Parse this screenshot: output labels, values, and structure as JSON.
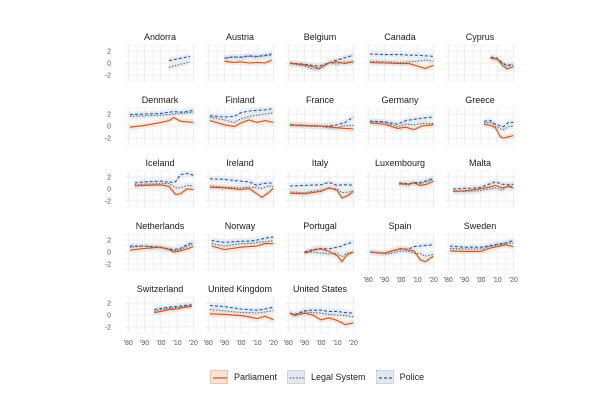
{
  "chart_data": {
    "type": "line",
    "title": "",
    "xlabel": "",
    "ylabel": "",
    "xlim": [
      1978,
      2021
    ],
    "ylim": [
      -3,
      3
    ],
    "x_ticks": [
      1980,
      1990,
      2000,
      2010,
      2020
    ],
    "x_tick_labels": [
      "'80",
      "'90",
      "'00",
      "'10",
      "'20"
    ],
    "y_ticks": [
      -2,
      0,
      2
    ],
    "y_tick_labels": [
      "-2",
      "0",
      "2"
    ],
    "grid": true,
    "legend_position": "bottom",
    "legend": [
      {
        "name": "Parliament",
        "color": "#c8541c",
        "style": "solid",
        "fill": "#f3d6c4"
      },
      {
        "name": "Legal System",
        "color": "#4a6f8f",
        "style": "dotted",
        "fill": "#dbe4ea"
      },
      {
        "name": "Police",
        "color": "#2f5597",
        "style": "dashed",
        "fill": "#d7e1ef"
      }
    ],
    "panels": [
      {
        "country": "Andorra",
        "x": [
          2005,
          2018
        ],
        "parliament": null,
        "legal": [
          -0.7,
          0.2
        ],
        "police": [
          0.4,
          1.1
        ]
      },
      {
        "country": "Austria",
        "x": [
          1990,
          1995,
          2000,
          2005,
          2010,
          2015,
          2019
        ],
        "parliament": [
          0.3,
          0.1,
          0.2,
          0.0,
          0.1,
          0.0,
          0.5
        ],
        "legal": [
          0.8,
          1.0,
          0.9,
          1.1,
          1.0,
          1.2,
          1.3
        ],
        "police": [
          0.8,
          1.0,
          1.0,
          1.2,
          1.1,
          1.3,
          1.5
        ]
      },
      {
        "country": "Belgium",
        "x": [
          1981,
          1990,
          1995,
          1999,
          2005,
          2010,
          2015,
          2020
        ],
        "parliament": [
          0.0,
          -0.3,
          -0.6,
          -0.9,
          0.0,
          0.2,
          -0.1,
          0.3
        ],
        "legal": [
          -0.1,
          -0.5,
          -1.0,
          -1.0,
          0.1,
          -0.2,
          0.2,
          0.0
        ],
        "police": [
          0.0,
          -0.2,
          -0.4,
          -0.5,
          0.0,
          0.5,
          0.9,
          1.3
        ]
      },
      {
        "country": "Canada",
        "x": [
          1981,
          1990,
          2000,
          2005,
          2010,
          2015,
          2020
        ],
        "parliament": [
          0.1,
          0.0,
          -0.1,
          -0.1,
          -0.5,
          -0.9,
          -0.4
        ],
        "legal": [
          0.3,
          0.2,
          0.1,
          0.2,
          0.3,
          0.5,
          0.3
        ],
        "police": [
          1.5,
          1.4,
          1.4,
          1.3,
          1.3,
          1.2,
          1.1
        ]
      },
      {
        "country": "Cyprus",
        "x": [
          2006,
          2010,
          2013,
          2016,
          2020
        ],
        "parliament": [
          0.8,
          0.7,
          -0.3,
          -1.0,
          -0.6
        ],
        "legal": [
          0.8,
          0.6,
          0.0,
          -0.5,
          -0.4
        ],
        "police": [
          1.0,
          0.8,
          0.1,
          -0.4,
          -0.2
        ]
      },
      {
        "country": "Denmark",
        "x": [
          1981,
          1990,
          2000,
          2005,
          2008,
          2012,
          2016,
          2020
        ],
        "parliament": [
          -0.2,
          0.1,
          0.6,
          0.9,
          1.4,
          0.8,
          0.7,
          0.6
        ],
        "legal": [
          1.6,
          1.7,
          1.8,
          1.9,
          2.0,
          2.1,
          2.2,
          2.3
        ],
        "police": [
          1.9,
          2.0,
          2.1,
          2.3,
          2.4,
          2.3,
          2.4,
          2.6
        ]
      },
      {
        "country": "Finland",
        "x": [
          1981,
          1990,
          1996,
          2000,
          2005,
          2010,
          2015,
          2020
        ],
        "parliament": [
          0.9,
          0.2,
          -0.1,
          0.5,
          1.0,
          0.6,
          0.9,
          0.6
        ],
        "legal": [
          1.5,
          1.0,
          0.6,
          1.2,
          1.6,
          1.8,
          2.0,
          2.2
        ],
        "police": [
          1.7,
          1.5,
          1.6,
          2.2,
          2.5,
          2.6,
          2.7,
          2.9
        ]
      },
      {
        "country": "France",
        "x": [
          1981,
          1990,
          2000,
          2005,
          2010,
          2015,
          2020
        ],
        "parliament": [
          0.2,
          0.1,
          0.0,
          -0.1,
          -0.3,
          -0.4,
          -0.5
        ],
        "legal": [
          0.1,
          0.0,
          -0.1,
          -0.3,
          -0.3,
          0.1,
          0.1
        ],
        "police": [
          0.2,
          0.1,
          0.0,
          0.0,
          0.2,
          0.6,
          1.5
        ]
      },
      {
        "country": "Germany",
        "x": [
          1981,
          1990,
          1998,
          2003,
          2008,
          2013,
          2020
        ],
        "parliament": [
          0.5,
          0.3,
          -0.4,
          -0.2,
          -0.6,
          0.0,
          0.2
        ],
        "legal": [
          0.7,
          0.6,
          -0.1,
          0.3,
          0.2,
          0.4,
          0.4
        ],
        "police": [
          0.8,
          0.7,
          0.3,
          0.9,
          1.1,
          1.3,
          1.5
        ]
      },
      {
        "country": "Greece",
        "x": [
          2002,
          2006,
          2009,
          2012,
          2014,
          2017,
          2020
        ],
        "parliament": [
          0.3,
          0.1,
          -0.3,
          -1.8,
          -2.0,
          -1.8,
          -1.6
        ],
        "legal": [
          0.5,
          0.6,
          0.0,
          -0.5,
          -0.6,
          -0.1,
          0.0
        ],
        "police": [
          0.8,
          0.9,
          0.3,
          0.0,
          -0.1,
          0.6,
          0.6
        ]
      },
      {
        "country": "Iceland",
        "x": [
          1984,
          1990,
          2000,
          2005,
          2009,
          2012,
          2016,
          2020
        ],
        "parliament": [
          0.5,
          0.6,
          0.7,
          0.4,
          -0.9,
          -0.8,
          0.0,
          -0.1
        ],
        "legal": [
          0.7,
          0.8,
          0.9,
          0.9,
          0.2,
          0.2,
          0.6,
          0.5
        ],
        "police": [
          1.0,
          1.2,
          1.3,
          1.1,
          1.2,
          2.4,
          2.6,
          2.3
        ]
      },
      {
        "country": "Ireland",
        "x": [
          1981,
          1990,
          2000,
          2005,
          2010,
          2013,
          2017,
          2020
        ],
        "parliament": [
          0.3,
          0.2,
          -0.1,
          0.1,
          -0.8,
          -1.4,
          -0.6,
          0.1
        ],
        "legal": [
          0.5,
          0.3,
          0.2,
          0.3,
          0.2,
          0.1,
          0.5,
          0.4
        ],
        "police": [
          1.7,
          1.6,
          1.3,
          1.2,
          0.6,
          0.9,
          1.0,
          1.0
        ]
      },
      {
        "country": "Italy",
        "x": [
          1981,
          1990,
          2000,
          2005,
          2010,
          2013,
          2017,
          2020
        ],
        "parliament": [
          -0.7,
          -0.8,
          -0.4,
          0.2,
          -0.2,
          -1.5,
          -1.0,
          -0.4
        ],
        "legal": [
          -0.5,
          -0.6,
          -0.2,
          0.1,
          0.0,
          -0.6,
          -0.5,
          -0.3
        ],
        "police": [
          0.5,
          0.6,
          0.7,
          1.1,
          0.6,
          0.7,
          0.7,
          0.6
        ]
      },
      {
        "country": "Luxembourg",
        "x": [
          1999,
          2005,
          2008,
          2012,
          2016,
          2020
        ],
        "parliament": [
          0.9,
          0.8,
          1.0,
          0.6,
          0.8,
          1.3
        ],
        "legal": [
          0.8,
          0.7,
          1.1,
          0.9,
          1.2,
          1.6
        ],
        "police": [
          1.0,
          0.9,
          1.0,
          1.1,
          1.4,
          1.8
        ]
      },
      {
        "country": "Malta",
        "x": [
          1983,
          1990,
          1999,
          2005,
          2009,
          2013,
          2017,
          2020
        ],
        "parliament": [
          -0.4,
          -0.3,
          0.0,
          0.3,
          0.6,
          0.2,
          0.4,
          0.2
        ],
        "legal": [
          -0.3,
          -0.4,
          -0.3,
          0.0,
          0.2,
          -0.2,
          0.6,
          0.3
        ],
        "police": [
          0.0,
          0.1,
          0.2,
          0.8,
          1.2,
          0.8,
          0.7,
          0.8
        ]
      },
      {
        "country": "Netherlands",
        "x": [
          1981,
          1990,
          2000,
          2005,
          2008,
          2012,
          2016,
          2020
        ],
        "parliament": [
          0.3,
          0.6,
          0.8,
          0.4,
          0.0,
          0.2,
          0.5,
          0.9
        ],
        "legal": [
          0.8,
          1.0,
          0.7,
          0.5,
          0.2,
          0.4,
          0.9,
          1.4
        ],
        "police": [
          1.0,
          1.0,
          0.8,
          0.5,
          0.4,
          0.6,
          1.2,
          1.6
        ]
      },
      {
        "country": "Norway",
        "x": [
          1982,
          1990,
          2000,
          2005,
          2010,
          2015,
          2020
        ],
        "parliament": [
          1.0,
          0.4,
          0.8,
          0.9,
          1.0,
          1.4,
          1.4
        ],
        "legal": [
          1.4,
          1.0,
          1.4,
          1.4,
          1.6,
          1.7,
          1.9
        ],
        "police": [
          1.9,
          1.6,
          1.8,
          1.8,
          2.0,
          2.3,
          2.5
        ]
      },
      {
        "country": "Portugal",
        "x": [
          1990,
          1995,
          2000,
          2005,
          2010,
          2013,
          2016,
          2020
        ],
        "parliament": [
          -0.2,
          0.3,
          0.5,
          0.1,
          -0.6,
          -1.6,
          -0.5,
          0.0
        ],
        "legal": [
          -0.1,
          0.0,
          -0.2,
          -0.3,
          -0.2,
          -0.8,
          -0.2,
          0.0
        ],
        "police": [
          0.0,
          0.4,
          0.6,
          0.5,
          0.8,
          1.0,
          1.4,
          1.6
        ]
      },
      {
        "country": "Spain",
        "x": [
          1981,
          1990,
          1995,
          2000,
          2005,
          2008,
          2012,
          2015,
          2020
        ],
        "parliament": [
          0.0,
          -0.2,
          0.2,
          0.6,
          0.3,
          0.2,
          -1.3,
          -1.6,
          -0.7
        ],
        "legal": [
          0.0,
          -0.3,
          -0.2,
          0.2,
          0.1,
          -0.2,
          -0.3,
          -0.7,
          -0.4
        ],
        "police": [
          0.0,
          -0.2,
          0.2,
          0.5,
          0.5,
          0.9,
          1.0,
          1.1,
          1.2
        ]
      },
      {
        "country": "Sweden",
        "x": [
          1981,
          1990,
          2000,
          2005,
          2010,
          2015,
          2020
        ],
        "parliament": [
          0.2,
          0.1,
          0.1,
          0.6,
          0.9,
          1.2,
          0.9
        ],
        "legal": [
          0.6,
          0.5,
          0.5,
          0.9,
          1.1,
          1.4,
          1.5
        ],
        "police": [
          1.0,
          0.8,
          0.8,
          1.0,
          1.3,
          1.5,
          1.9
        ]
      },
      {
        "country": "Switzerland",
        "x": [
          1996,
          2000,
          2005,
          2010,
          2015,
          2019
        ],
        "parliament": [
          0.4,
          0.6,
          0.9,
          1.0,
          1.3,
          1.4
        ],
        "legal": [
          0.6,
          0.9,
          1.1,
          1.2,
          1.5,
          1.5
        ],
        "police": [
          0.9,
          1.1,
          1.3,
          1.4,
          1.6,
          1.7
        ]
      },
      {
        "country": "United Kingdom",
        "x": [
          1981,
          1990,
          2000,
          2005,
          2010,
          2015,
          2020
        ],
        "parliament": [
          0.2,
          0.1,
          -0.1,
          -0.3,
          -0.6,
          -0.2,
          -0.8
        ],
        "legal": [
          0.9,
          0.7,
          0.4,
          0.4,
          0.3,
          0.5,
          0.7
        ],
        "police": [
          1.6,
          1.4,
          1.0,
          0.9,
          0.8,
          1.0,
          1.3
        ]
      },
      {
        "country": "United States",
        "x": [
          1981,
          1984,
          1990,
          1995,
          2000,
          2005,
          2010,
          2015,
          2020
        ],
        "parliament": [
          0.3,
          -0.1,
          0.3,
          0.0,
          -0.8,
          -0.5,
          -0.9,
          -1.6,
          -1.3
        ],
        "legal": [
          0.3,
          0.0,
          0.5,
          0.4,
          0.3,
          0.1,
          0.0,
          -0.1,
          -0.3
        ],
        "police": [
          0.3,
          0.1,
          0.7,
          0.8,
          0.8,
          0.6,
          0.6,
          0.4,
          0.3
        ]
      }
    ]
  }
}
